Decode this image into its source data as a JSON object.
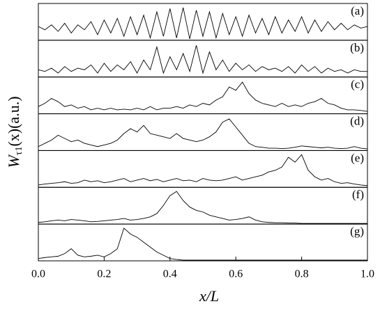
{
  "chart_data": {
    "type": "line",
    "xlabel": "x/L",
    "ylabel": {
      "main": "W",
      "sub": "τ1",
      "rest": "(x)(a.u.)"
    },
    "xlim": [
      0,
      1
    ],
    "xticks": [
      {
        "value": 0,
        "label": "0.0"
      },
      0.2,
      0.4,
      0.6,
      0.8,
      {
        "value": 1,
        "label": "1.0"
      }
    ],
    "ylim": [
      0,
      1
    ],
    "x": [
      0,
      0.02,
      0.04,
      0.06,
      0.08,
      0.1,
      0.12,
      0.14,
      0.16,
      0.18,
      0.2,
      0.22,
      0.24,
      0.26,
      0.28,
      0.3,
      0.32,
      0.34,
      0.36,
      0.38,
      0.4,
      0.42,
      0.44,
      0.46,
      0.48,
      0.5,
      0.52,
      0.54,
      0.56,
      0.58,
      0.6,
      0.62,
      0.64,
      0.66,
      0.68,
      0.7,
      0.72,
      0.74,
      0.76,
      0.78,
      0.8,
      0.82,
      0.84,
      0.86,
      0.88,
      0.9,
      0.92,
      0.94,
      0.96,
      0.98,
      1
    ],
    "series": [
      {
        "name": "(a)",
        "color": "#000000",
        "values": [
          0.4,
          0.3,
          0.45,
          0.25,
          0.5,
          0.2,
          0.45,
          0.3,
          0.55,
          0.15,
          0.6,
          0.2,
          0.65,
          0.1,
          0.7,
          0.15,
          0.75,
          0.05,
          0.85,
          0.1,
          0.95,
          0.05,
          0.98,
          0.02,
          0.9,
          0.1,
          0.85,
          0.05,
          0.8,
          0.15,
          0.7,
          0.1,
          0.75,
          0.2,
          0.65,
          0.15,
          0.7,
          0.2,
          0.6,
          0.25,
          0.7,
          0.2,
          0.6,
          0.25,
          0.55,
          0.3,
          0.5,
          0.3,
          0.45,
          0.35,
          0.4
        ]
      },
      {
        "name": "(b)",
        "color": "#000000",
        "values": [
          0.2,
          0.15,
          0.25,
          0.1,
          0.3,
          0.15,
          0.25,
          0.2,
          0.35,
          0.1,
          0.4,
          0.15,
          0.35,
          0.2,
          0.45,
          0.1,
          0.5,
          0.2,
          0.9,
          0.1,
          0.6,
          0.2,
          0.7,
          0.15,
          0.95,
          0.1,
          0.75,
          0.2,
          0.5,
          0.15,
          0.4,
          0.2,
          0.35,
          0.15,
          0.3,
          0.2,
          0.25,
          0.15,
          0.3,
          0.1,
          0.35,
          0.15,
          0.3,
          0.1,
          0.25,
          0.15,
          0.2,
          0.1,
          0.2,
          0.15,
          0.15
        ]
      },
      {
        "name": "(c)",
        "color": "#000000",
        "values": [
          0.2,
          0.3,
          0.45,
          0.35,
          0.2,
          0.25,
          0.15,
          0.2,
          0.1,
          0.15,
          0.1,
          0.15,
          0.1,
          0.12,
          0.1,
          0.15,
          0.1,
          0.2,
          0.1,
          0.15,
          0.15,
          0.2,
          0.15,
          0.25,
          0.2,
          0.3,
          0.25,
          0.4,
          0.5,
          0.8,
          0.7,
          0.95,
          0.6,
          0.4,
          0.3,
          0.25,
          0.2,
          0.3,
          0.2,
          0.25,
          0.2,
          0.3,
          0.35,
          0.45,
          0.3,
          0.25,
          0.15,
          0.1,
          0.1,
          0.08,
          0.05
        ]
      },
      {
        "name": "(d)",
        "color": "#000000",
        "values": [
          0.1,
          0.2,
          0.3,
          0.45,
          0.35,
          0.25,
          0.3,
          0.2,
          0.15,
          0.1,
          0.15,
          0.2,
          0.3,
          0.5,
          0.65,
          0.55,
          0.75,
          0.5,
          0.45,
          0.4,
          0.35,
          0.5,
          0.35,
          0.3,
          0.25,
          0.3,
          0.4,
          0.55,
          0.85,
          0.95,
          0.7,
          0.45,
          0.2,
          0.1,
          0.08,
          0.05,
          0.05,
          0.04,
          0.05,
          0.08,
          0.12,
          0.1,
          0.08,
          0.06,
          0.08,
          0.05,
          0.04,
          0.05,
          0.1,
          0.05,
          0.03
        ]
      },
      {
        "name": "(e)",
        "color": "#000000",
        "values": [
          0.05,
          0.08,
          0.1,
          0.12,
          0.15,
          0.1,
          0.12,
          0.2,
          0.15,
          0.18,
          0.12,
          0.15,
          0.2,
          0.25,
          0.15,
          0.2,
          0.25,
          0.18,
          0.22,
          0.15,
          0.2,
          0.25,
          0.18,
          0.2,
          0.15,
          0.25,
          0.2,
          0.18,
          0.2,
          0.25,
          0.3,
          0.2,
          0.25,
          0.3,
          0.35,
          0.45,
          0.5,
          0.6,
          0.9,
          0.75,
          0.98,
          0.5,
          0.3,
          0.2,
          0.25,
          0.15,
          0.1,
          0.12,
          0.08,
          0.05,
          0.03
        ]
      },
      {
        "name": "(f)",
        "color": "#000000",
        "values": [
          0.03,
          0.05,
          0.08,
          0.1,
          0.08,
          0.12,
          0.1,
          0.08,
          0.05,
          0.06,
          0.08,
          0.1,
          0.12,
          0.15,
          0.1,
          0.12,
          0.15,
          0.2,
          0.3,
          0.55,
          0.85,
          0.98,
          0.7,
          0.5,
          0.4,
          0.35,
          0.25,
          0.2,
          0.15,
          0.1,
          0.12,
          0.15,
          0.2,
          0.1,
          0.05,
          0.03,
          0.02,
          0.02,
          0.01,
          0.01,
          0,
          0,
          0,
          0,
          0,
          0,
          0,
          0,
          0,
          0,
          0
        ]
      },
      {
        "name": "(g)",
        "color": "#000000",
        "values": [
          0.05,
          0.08,
          0.1,
          0.12,
          0.2,
          0.35,
          0.15,
          0.1,
          0.12,
          0.15,
          0.1,
          0.2,
          0.35,
          0.98,
          0.8,
          0.7,
          0.55,
          0.4,
          0.25,
          0.15,
          0.05,
          0.02,
          0,
          0,
          0,
          0,
          0,
          0,
          0,
          0,
          0,
          0,
          0,
          0,
          0,
          0,
          0,
          0,
          0,
          0,
          0,
          0,
          0,
          0,
          0,
          0,
          0,
          0,
          0,
          0,
          0
        ]
      }
    ]
  }
}
